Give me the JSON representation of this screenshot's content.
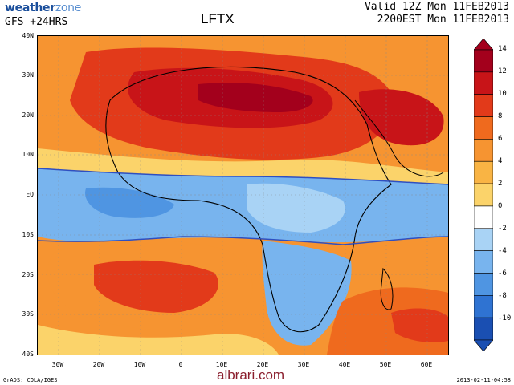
{
  "header": {
    "logo_part1": "weather",
    "logo_part2": "zone",
    "model": "GFS  +24HRS",
    "title": "LFTX",
    "valid_utc": "Valid 12Z Mon 11FEB2013",
    "valid_local": "2200EST Mon 11FEB2013"
  },
  "map": {
    "lat_labels": [
      "40N",
      "30N",
      "20N",
      "10N",
      "EQ",
      "10S",
      "20S",
      "30S",
      "40S"
    ],
    "lon_labels": [
      "30W",
      "20W",
      "10W",
      "0",
      "10E",
      "20E",
      "30E",
      "40E",
      "50E",
      "60E"
    ],
    "region": "Africa"
  },
  "colorbar": {
    "labels": [
      "14",
      "12",
      "10",
      "8",
      "6",
      "4",
      "2",
      "0",
      "-2",
      "-4",
      "-6",
      "-8",
      "-10"
    ],
    "colors": [
      "#a3001c",
      "#c81418",
      "#e23a1a",
      "#ef6a1e",
      "#f69431",
      "#f9b444",
      "#fbd36a",
      "#ffffff",
      "#a9d3f5",
      "#78b4ee",
      "#4f95e2",
      "#2f73d2",
      "#1a4fb2"
    ]
  },
  "footer": {
    "left": "GrADS: COLA/IGES",
    "right": "2013-02-11-04:58",
    "watermark": "albrari.com"
  }
}
